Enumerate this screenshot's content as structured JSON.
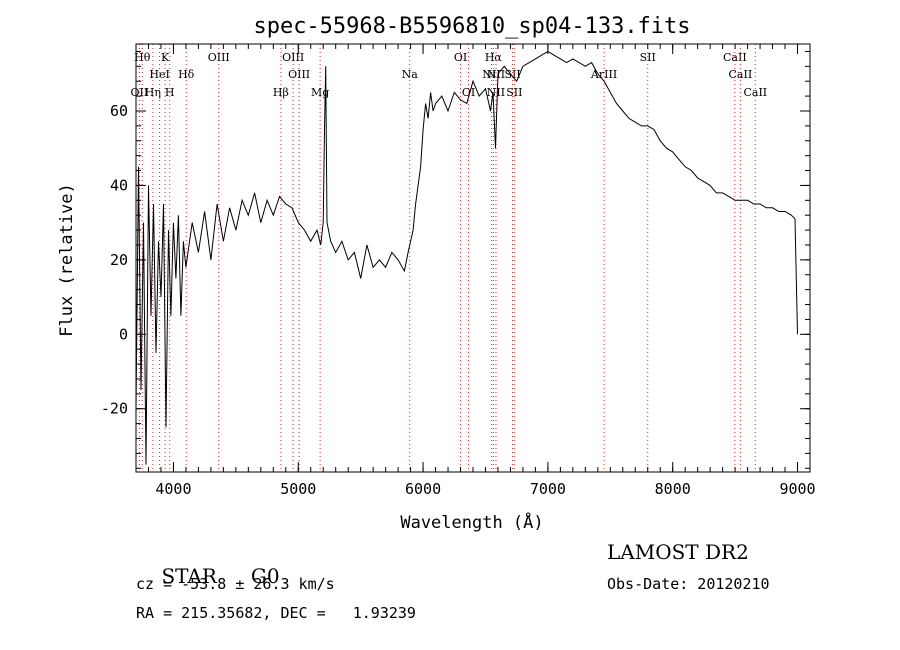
{
  "chart_data": {
    "type": "line",
    "title": "spec-55968-B5596810_sp04-133.fits",
    "xlabel": "Wavelength (Å)",
    "ylabel": "Flux (relative)",
    "xlim": [
      3700,
      9100
    ],
    "ylim": [
      -37,
      78
    ],
    "x_ticks": [
      4000,
      5000,
      6000,
      7000,
      8000,
      9000
    ],
    "y_ticks": [
      -20,
      0,
      20,
      40,
      60
    ],
    "grid": false,
    "series": [
      {
        "x": [
          3700,
          3720,
          3740,
          3760,
          3780,
          3800,
          3820,
          3840,
          3860,
          3880,
          3900,
          3920,
          3940,
          3960,
          3980,
          4000,
          4020,
          4040,
          4060,
          4080,
          4100,
          4150,
          4200,
          4250,
          4300,
          4350,
          4400,
          4450,
          4500,
          4550,
          4600,
          4650,
          4700,
          4750,
          4800,
          4850,
          4900,
          4950,
          5000,
          5050,
          5100,
          5150,
          5180,
          5200,
          5210,
          5220,
          5230,
          5260,
          5300,
          5350,
          5400,
          5450,
          5500,
          5550,
          5600,
          5650,
          5700,
          5750,
          5800,
          5850,
          5880,
          5900,
          5920,
          5940,
          5960,
          5980,
          6000,
          6020,
          6040,
          6060,
          6080,
          6100,
          6150,
          6200,
          6250,
          6300,
          6350,
          6400,
          6450,
          6500,
          6540,
          6560,
          6580,
          6600,
          6650,
          6700,
          6750,
          6800,
          6850,
          6900,
          6950,
          7000,
          7050,
          7100,
          7150,
          7200,
          7250,
          7300,
          7350,
          7400,
          7450,
          7500,
          7550,
          7600,
          7650,
          7700,
          7750,
          7800,
          7850,
          7900,
          7950,
          8000,
          8050,
          8100,
          8150,
          8200,
          8250,
          8300,
          8350,
          8400,
          8450,
          8500,
          8550,
          8600,
          8650,
          8700,
          8750,
          8800,
          8850,
          8900,
          8950,
          8980,
          9000
        ],
        "y": [
          -20,
          45,
          -15,
          30,
          -35,
          40,
          5,
          35,
          -5,
          25,
          10,
          35,
          -25,
          28,
          5,
          30,
          15,
          32,
          5,
          25,
          18,
          30,
          22,
          33,
          20,
          35,
          25,
          34,
          28,
          36,
          32,
          38,
          30,
          36,
          32,
          37,
          35,
          34,
          30,
          28,
          25,
          28,
          24,
          30,
          55,
          72,
          30,
          25,
          22,
          25,
          20,
          22,
          15,
          24,
          18,
          20,
          18,
          22,
          20,
          17,
          22,
          25,
          28,
          35,
          40,
          45,
          55,
          62,
          58,
          65,
          60,
          62,
          64,
          60,
          65,
          63,
          62,
          68,
          64,
          66,
          60,
          65,
          50,
          70,
          72,
          70,
          68,
          72,
          73,
          74,
          75,
          76,
          75,
          74,
          73,
          74,
          73,
          72,
          73,
          70,
          68,
          65,
          62,
          60,
          58,
          57,
          56,
          56,
          55,
          52,
          50,
          49,
          47,
          45,
          44,
          42,
          41,
          40,
          38,
          38,
          37,
          36,
          36,
          36,
          35,
          35,
          34,
          34,
          33,
          33,
          32,
          31,
          0
        ]
      }
    ],
    "lines": [
      {
        "label": "Hθ",
        "x": 3750,
        "row": 0
      },
      {
        "label": "K",
        "x": 3933,
        "row": 0
      },
      {
        "label": "OIII",
        "x": 4363,
        "row": 0
      },
      {
        "label": "OIII",
        "x": 4959,
        "row": 0
      },
      {
        "label": "OI",
        "x": 6300,
        "row": 0
      },
      {
        "label": "Hα",
        "x": 6563,
        "row": 0
      },
      {
        "label": "SII",
        "x": 7800,
        "row": 0
      },
      {
        "label": "CaII",
        "x": 8498,
        "row": 0
      },
      {
        "label": "HeI",
        "x": 3889,
        "row": 1
      },
      {
        "label": "Hδ",
        "x": 4102,
        "row": 1
      },
      {
        "label": "OIII",
        "x": 5007,
        "row": 1
      },
      {
        "label": "Na",
        "x": 5893,
        "row": 1
      },
      {
        "label": "NII",
        "x": 6548,
        "row": 1
      },
      {
        "label": "NII",
        "x": 6584,
        "row": 1
      },
      {
        "label": "SII",
        "x": 6717,
        "row": 1
      },
      {
        "label": "ArIII",
        "x": 7450,
        "row": 1
      },
      {
        "label": "CaII",
        "x": 8542,
        "row": 1
      },
      {
        "label": "OII",
        "x": 3727,
        "row": 2
      },
      {
        "label": "Hη",
        "x": 3835,
        "row": 2
      },
      {
        "label": "H",
        "x": 3970,
        "row": 2
      },
      {
        "label": "Hβ",
        "x": 4861,
        "row": 2
      },
      {
        "label": "Mg",
        "x": 5175,
        "row": 2
      },
      {
        "label": "OI",
        "x": 6364,
        "row": 2
      },
      {
        "label": "NII",
        "x": 6584,
        "row": 2
      },
      {
        "label": "SII",
        "x": 6731,
        "row": 2
      },
      {
        "label": "CaII",
        "x": 8662,
        "row": 2
      }
    ]
  },
  "info": {
    "object_class": "STAR",
    "subclass": "G0",
    "survey": "LAMOST DR2",
    "cz": "cz = -53.8 ± 26.3 km/s",
    "obs_date": "Obs-Date: 20120210",
    "coords": "RA = 215.35682, DEC =   1.93239"
  }
}
